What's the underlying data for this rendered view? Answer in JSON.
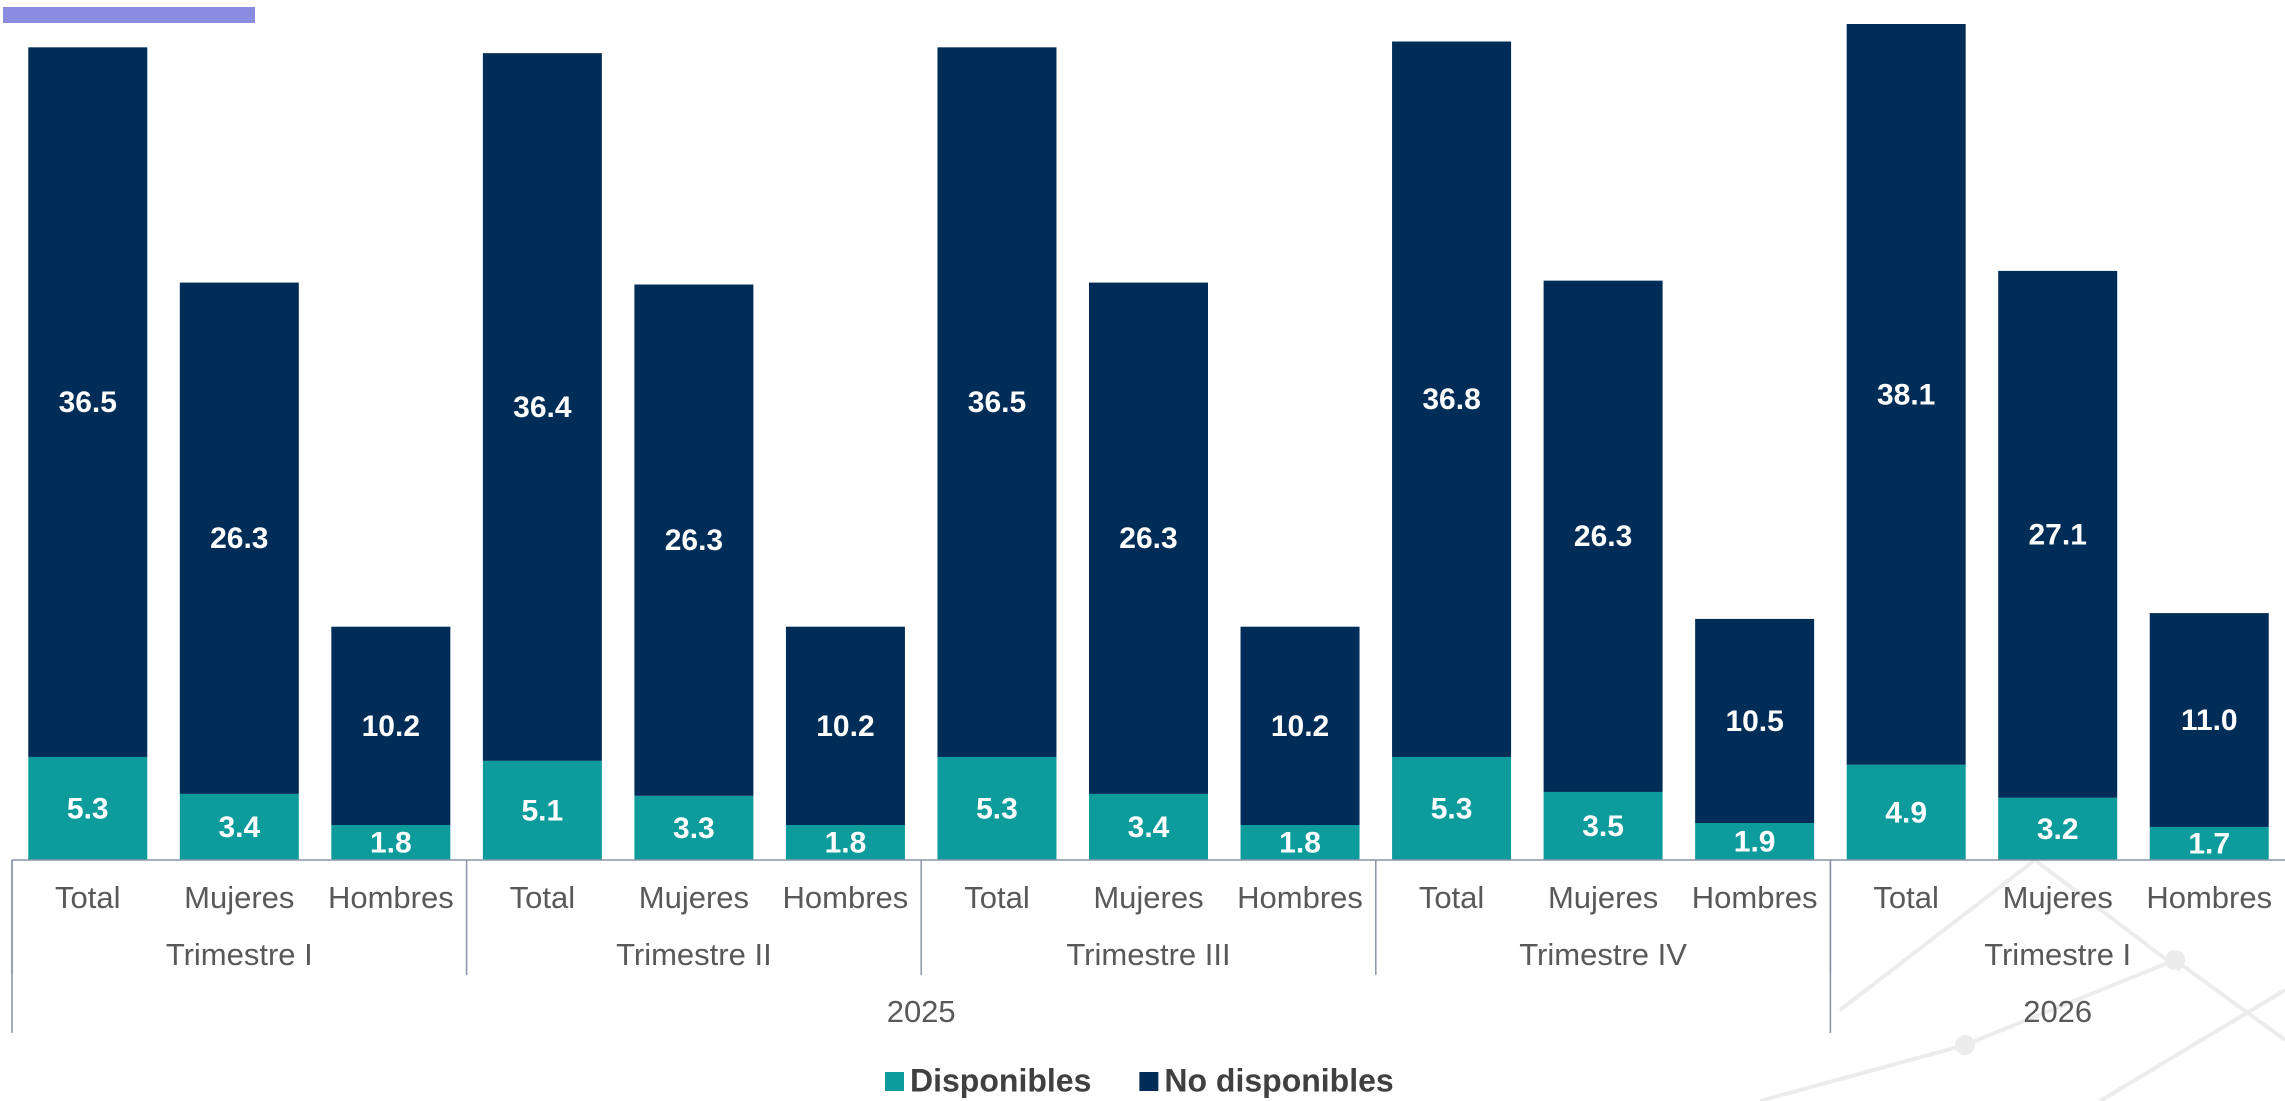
{
  "chart_data": {
    "type": "stacked_bar",
    "categories": [
      "Total",
      "Mujeres",
      "Hombres",
      "Total",
      "Mujeres",
      "Hombres",
      "Total",
      "Mujeres",
      "Hombres",
      "Total",
      "Mujeres",
      "Hombres",
      "Total",
      "Mujeres",
      "Hombres"
    ],
    "quarters": [
      "Trimestre I",
      "Trimestre II",
      "Trimestre III",
      "Trimestre IV",
      "Trimestre I"
    ],
    "years": [
      "2025",
      "2026"
    ],
    "series": [
      {
        "name": "Disponibles",
        "color": "#0e9b9b",
        "values": [
          5.3,
          3.4,
          1.8,
          5.1,
          3.3,
          1.8,
          5.3,
          3.4,
          1.8,
          5.3,
          3.5,
          1.9,
          4.9,
          3.2,
          1.7
        ],
        "value_labels": [
          "5.3",
          "3.4",
          "1.8",
          "5.1",
          "3.3",
          "1.8",
          "5.3",
          "3.4",
          "1.8",
          "5.3",
          "3.5",
          "1.9",
          "4.9",
          "3.2",
          "1.7"
        ]
      },
      {
        "name": "No disponibles",
        "color": "#002d57",
        "values": [
          36.5,
          26.3,
          10.2,
          36.4,
          26.3,
          10.2,
          36.5,
          26.3,
          10.2,
          36.8,
          26.3,
          10.5,
          38.1,
          27.1,
          11.0
        ],
        "value_labels": [
          "36.5",
          "26.3",
          "10.2",
          "36.4",
          "26.3",
          "10.2",
          "36.5",
          "26.3",
          "10.2",
          "36.8",
          "26.3",
          "10.5",
          "38.1",
          "27.1",
          "11.0"
        ]
      }
    ],
    "legend": "bottom"
  }
}
